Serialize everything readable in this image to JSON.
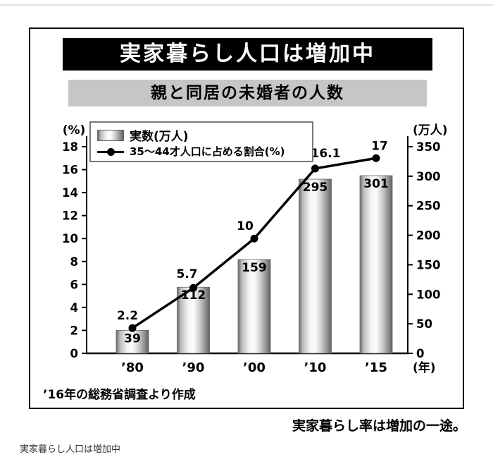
{
  "page": {
    "caption": "実家暮らし人口は増加中"
  },
  "figure": {
    "title": "実家暮らし人口は増加中",
    "subtitle": "親と同居の未婚者の人数",
    "source_note": "’16年の総務省調査より作成",
    "footer_note": "実家暮らし率は増加の一途。"
  },
  "chart_data": {
    "type": "bar+line",
    "title": "親と同居の未婚者の人数",
    "categories": [
      "’80",
      "’90",
      "’00",
      "’10",
      "’15"
    ],
    "series": [
      {
        "name": "実数(万人)",
        "type": "bar",
        "axis": "right",
        "values": [
          39,
          112,
          159,
          295,
          301
        ]
      },
      {
        "name": "35～44才人口に占める割合(%)",
        "type": "line",
        "axis": "left",
        "values": [
          2.2,
          5.7,
          10,
          16.1,
          17
        ]
      }
    ],
    "left_axis": {
      "label": "(%)",
      "min": 0,
      "max": 18,
      "step": 2
    },
    "right_axis": {
      "label": "(万人)",
      "min": 0,
      "max": 350,
      "step": 50
    },
    "x_axis_unit": "(年)",
    "grid": false,
    "legend_position": "top-left",
    "colors": {
      "line": "#000000",
      "bar_edge": "#606060",
      "bar_light": "#fdfdfd"
    }
  }
}
